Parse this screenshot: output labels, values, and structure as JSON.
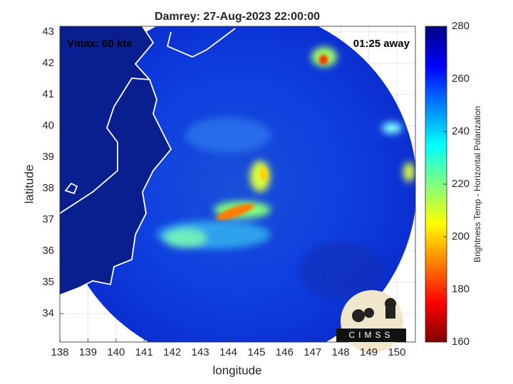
{
  "chart_data": {
    "type": "map",
    "title": "Damrey: 27-Aug-2023 22:00:00",
    "xlabel": "longitude",
    "ylabel": "latitude",
    "xlim": [
      138,
      150.66
    ],
    "ylim": [
      33.09,
      43.18
    ],
    "xticks": [
      138,
      139,
      140,
      141,
      142,
      143,
      144,
      145,
      146,
      147,
      148,
      149,
      150
    ],
    "yticks": [
      34,
      35,
      36,
      37,
      38,
      39,
      40,
      41,
      42,
      43
    ],
    "grid": true,
    "annotations": [
      "Vmax: 60 kts",
      "01:25 away"
    ],
    "logo": "CIMSS",
    "colorbar": {
      "label": "Brightness Temp - Horizontal Polarization",
      "lim": [
        160,
        280
      ],
      "ticks": [
        160,
        180,
        200,
        220,
        240,
        260,
        280
      ],
      "colormap": [
        "#7f0000",
        "#ff0000",
        "#ff7f00",
        "#ffff00",
        "#7fff7f",
        "#00ffff",
        "#007fff",
        "#0000ff",
        "#00007f"
      ]
    }
  }
}
